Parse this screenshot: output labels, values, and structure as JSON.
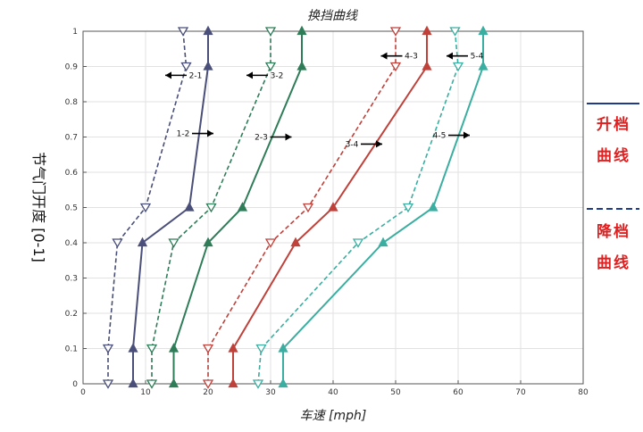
{
  "chart_data": {
    "type": "line",
    "title": "换挡曲线",
    "xlabel": "车速 [mph]",
    "ylabel": "节气门开度 [0-1]",
    "xlim": [
      0,
      80
    ],
    "ylim": [
      0,
      1
    ],
    "xticks": [
      "0",
      "10",
      "20",
      "30",
      "40",
      "50",
      "60",
      "70",
      "80"
    ],
    "yticks": [
      "0",
      "0.1",
      "0.2",
      "0.3",
      "0.4",
      "0.5",
      "0.6",
      "0.7",
      "0.8",
      "0.9",
      "1"
    ],
    "grid": true,
    "series": [
      {
        "label": "1-2",
        "kind": "upshift",
        "color": "#4a4f7a",
        "points": [
          [
            8,
            0
          ],
          [
            8,
            0.1
          ],
          [
            9.5,
            0.4
          ],
          [
            17,
            0.5
          ],
          [
            20,
            0.9
          ],
          [
            20,
            1
          ]
        ]
      },
      {
        "label": "2-1",
        "kind": "downshift",
        "color": "#4a4f7a",
        "points": [
          [
            4,
            0
          ],
          [
            4,
            0.1
          ],
          [
            5.5,
            0.4
          ],
          [
            10,
            0.5
          ],
          [
            16.5,
            0.9
          ],
          [
            16,
            1
          ]
        ]
      },
      {
        "label": "2-3",
        "kind": "upshift",
        "color": "#2e7d58",
        "points": [
          [
            14.5,
            0
          ],
          [
            14.5,
            0.1
          ],
          [
            20,
            0.4
          ],
          [
            25.5,
            0.5
          ],
          [
            35,
            0.9
          ],
          [
            35,
            1
          ]
        ]
      },
      {
        "label": "3-2",
        "kind": "downshift",
        "color": "#2e7d58",
        "points": [
          [
            11,
            0
          ],
          [
            11,
            0.1
          ],
          [
            14.5,
            0.4
          ],
          [
            20.5,
            0.5
          ],
          [
            30,
            0.9
          ],
          [
            30,
            1
          ]
        ]
      },
      {
        "label": "3-4",
        "kind": "upshift",
        "color": "#c0403a",
        "points": [
          [
            24,
            0
          ],
          [
            24,
            0.1
          ],
          [
            34,
            0.4
          ],
          [
            40,
            0.5
          ],
          [
            55,
            0.9
          ],
          [
            55,
            1
          ]
        ]
      },
      {
        "label": "4-3",
        "kind": "downshift",
        "color": "#c0403a",
        "points": [
          [
            20,
            0
          ],
          [
            20,
            0.1
          ],
          [
            30,
            0.4
          ],
          [
            36,
            0.5
          ],
          [
            50,
            0.9
          ],
          [
            50,
            1
          ]
        ]
      },
      {
        "label": "4-5",
        "kind": "upshift",
        "color": "#3aaea0",
        "points": [
          [
            32,
            0
          ],
          [
            32,
            0.1
          ],
          [
            48,
            0.4
          ],
          [
            56,
            0.5
          ],
          [
            64,
            0.9
          ],
          [
            64,
            1
          ]
        ]
      },
      {
        "label": "5-4",
        "kind": "downshift",
        "color": "#3aaea0",
        "points": [
          [
            28,
            0
          ],
          [
            28.5,
            0.1
          ],
          [
            44,
            0.4
          ],
          [
            52,
            0.5
          ],
          [
            60,
            0.9
          ],
          [
            59.5,
            1
          ]
        ]
      }
    ],
    "annotations": [
      {
        "text": "1-2",
        "x": 16,
        "y": 0.71,
        "arrow": "right"
      },
      {
        "text": "2-1",
        "x": 18,
        "y": 0.875,
        "arrow": "left"
      },
      {
        "text": "2-3",
        "x": 28.5,
        "y": 0.7,
        "arrow": "right"
      },
      {
        "text": "3-2",
        "x": 31,
        "y": 0.875,
        "arrow": "left"
      },
      {
        "text": "3-4",
        "x": 43,
        "y": 0.68,
        "arrow": "right"
      },
      {
        "text": "4-3",
        "x": 52.5,
        "y": 0.93,
        "arrow": "left"
      },
      {
        "text": "4-5",
        "x": 57,
        "y": 0.705,
        "arrow": "right"
      },
      {
        "text": "5-4",
        "x": 63,
        "y": 0.93,
        "arrow": "left"
      }
    ]
  },
  "legend": {
    "upshift": {
      "text": "升档曲线",
      "line1": "升档",
      "line2": "曲线",
      "color": "#1f3a8a",
      "style": "solid"
    },
    "downshift": {
      "text": "降档曲线",
      "line1": "降档",
      "line2": "曲线",
      "color": "#1f3a8a",
      "style": "dashed"
    }
  }
}
